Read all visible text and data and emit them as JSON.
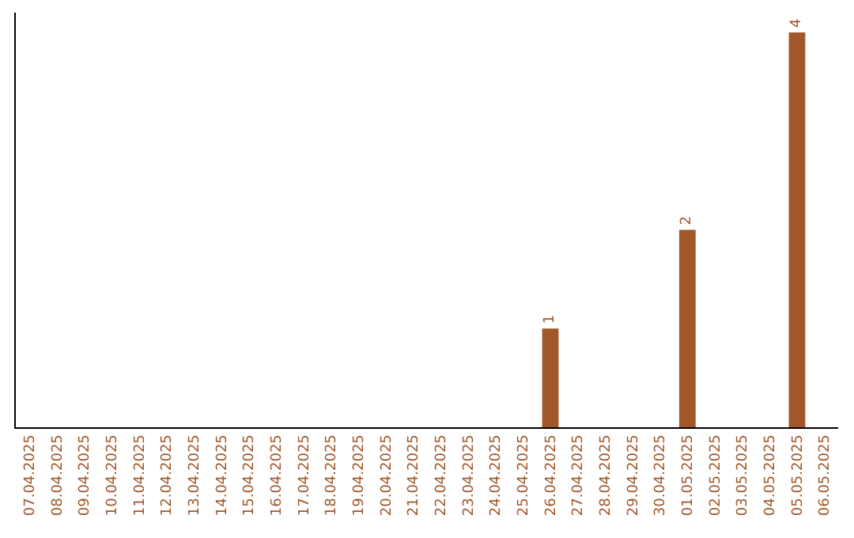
{
  "chart_data": {
    "type": "bar",
    "categories": [
      "07.04.2025",
      "08.04.2025",
      "09.04.2025",
      "10.04.2025",
      "11.04.2025",
      "12.04.2025",
      "13.04.2025",
      "14.04.2025",
      "15.04.2025",
      "16.04.2025",
      "17.04.2025",
      "18.04.2025",
      "19.04.2025",
      "20.04.2025",
      "21.04.2025",
      "22.04.2025",
      "23.04.2025",
      "24.04.2025",
      "25.04.2025",
      "26.04.2025",
      "27.04.2025",
      "28.04.2025",
      "29.04.2025",
      "30.04.2025",
      "01.05.2025",
      "02.05.2025",
      "03.05.2025",
      "04.05.2025",
      "05.05.2025",
      "06.05.2025"
    ],
    "values": [
      null,
      null,
      null,
      null,
      null,
      null,
      null,
      null,
      null,
      null,
      null,
      null,
      null,
      null,
      null,
      null,
      null,
      null,
      null,
      1,
      null,
      null,
      null,
      null,
      2,
      null,
      null,
      null,
      4,
      null
    ],
    "value_labels": [
      null,
      null,
      null,
      null,
      null,
      null,
      null,
      null,
      null,
      null,
      null,
      null,
      null,
      null,
      null,
      null,
      null,
      null,
      null,
      "1",
      null,
      null,
      null,
      null,
      "2",
      null,
      null,
      null,
      "4",
      null
    ],
    "color": "#a0572a",
    "ylim": [
      0,
      4.2
    ],
    "tick_labels": "x",
    "legend": false
  }
}
